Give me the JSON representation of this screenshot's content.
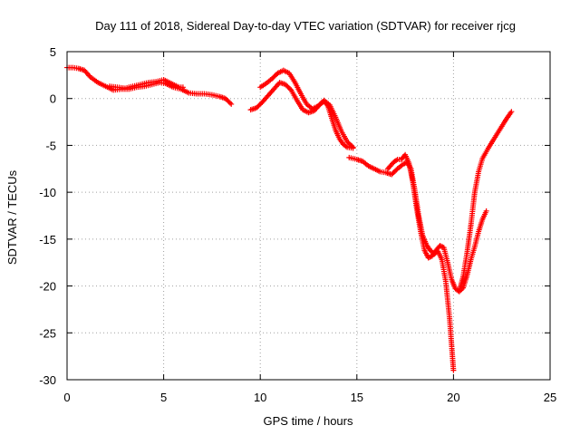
{
  "chart_data": {
    "type": "scatter",
    "title": "Day 111 of 2018, Sidereal Day-to-day VTEC variation (SDTVAR) for receiver rjcg",
    "xlabel": "GPS time / hours",
    "ylabel": "SDTVAR / TECUs",
    "xlim": [
      0,
      25
    ],
    "ylim": [
      -30,
      5
    ],
    "xticks": [
      0,
      5,
      10,
      15,
      20,
      25
    ],
    "yticks": [
      5,
      0,
      -5,
      -10,
      -15,
      -20,
      -25,
      -30
    ],
    "grid": true,
    "marker": "+",
    "color": "#ff0000",
    "series": [
      {
        "name": "seg1",
        "points": [
          [
            0.0,
            3.3
          ],
          [
            0.3,
            3.3
          ],
          [
            0.6,
            3.2
          ],
          [
            0.9,
            3.0
          ],
          [
            1.2,
            2.3
          ],
          [
            1.6,
            1.7
          ],
          [
            2.0,
            1.3
          ],
          [
            2.4,
            0.9
          ],
          [
            2.8,
            1.0
          ],
          [
            3.2,
            1.0
          ],
          [
            3.6,
            1.2
          ],
          [
            4.0,
            1.3
          ],
          [
            4.4,
            1.5
          ],
          [
            4.8,
            1.7
          ],
          [
            5.1,
            1.6
          ],
          [
            5.5,
            1.2
          ],
          [
            5.9,
            1.0
          ],
          [
            6.3,
            0.6
          ],
          [
            6.7,
            0.5
          ],
          [
            7.1,
            0.5
          ],
          [
            7.5,
            0.4
          ],
          [
            7.9,
            0.2
          ],
          [
            8.2,
            0.0
          ],
          [
            8.5,
            -0.6
          ]
        ]
      },
      {
        "name": "seg2",
        "points": [
          [
            2.2,
            1.3
          ],
          [
            2.6,
            1.2
          ],
          [
            3.0,
            1.1
          ],
          [
            3.4,
            1.3
          ],
          [
            3.8,
            1.5
          ],
          [
            4.2,
            1.7
          ],
          [
            4.6,
            1.8
          ],
          [
            5.0,
            2.0
          ],
          [
            5.4,
            1.6
          ],
          [
            5.8,
            1.2
          ],
          [
            6.0,
            1.2
          ]
        ]
      },
      {
        "name": "seg3",
        "points": [
          [
            9.5,
            -1.2
          ],
          [
            9.8,
            -1.0
          ],
          [
            10.1,
            -0.4
          ],
          [
            10.4,
            0.3
          ],
          [
            10.7,
            1.0
          ],
          [
            11.0,
            1.7
          ],
          [
            11.3,
            1.5
          ],
          [
            11.6,
            0.9
          ],
          [
            11.9,
            -0.2
          ],
          [
            12.2,
            -1.2
          ],
          [
            12.5,
            -1.5
          ],
          [
            12.8,
            -1.3
          ],
          [
            13.1,
            -0.6
          ],
          [
            13.3,
            -0.3
          ],
          [
            13.5,
            -0.8
          ],
          [
            13.7,
            -2.1
          ],
          [
            13.9,
            -3.4
          ],
          [
            14.1,
            -4.3
          ],
          [
            14.3,
            -4.9
          ],
          [
            14.5,
            -5.2
          ],
          [
            14.8,
            -5.3
          ]
        ]
      },
      {
        "name": "seg4",
        "points": [
          [
            10.0,
            1.2
          ],
          [
            10.3,
            1.6
          ],
          [
            10.6,
            2.1
          ],
          [
            10.9,
            2.7
          ],
          [
            11.2,
            3.0
          ],
          [
            11.5,
            2.7
          ],
          [
            11.8,
            1.7
          ],
          [
            12.1,
            0.5
          ],
          [
            12.4,
            -0.6
          ],
          [
            12.7,
            -1.1
          ],
          [
            13.0,
            -0.8
          ],
          [
            13.3,
            -0.2
          ],
          [
            13.6,
            -0.7
          ],
          [
            13.9,
            -2.0
          ],
          [
            14.2,
            -3.5
          ],
          [
            14.5,
            -4.6
          ],
          [
            14.8,
            -5.2
          ]
        ]
      },
      {
        "name": "seg5",
        "points": [
          [
            14.6,
            -6.3
          ],
          [
            15.0,
            -6.5
          ],
          [
            15.3,
            -6.7
          ],
          [
            15.6,
            -7.2
          ],
          [
            15.9,
            -7.5
          ],
          [
            16.2,
            -7.8
          ],
          [
            16.5,
            -7.9
          ],
          [
            16.8,
            -8.1
          ],
          [
            17.1,
            -7.5
          ],
          [
            17.4,
            -7.0
          ],
          [
            17.6,
            -6.8
          ],
          [
            17.8,
            -7.5
          ],
          [
            18.0,
            -9.8
          ],
          [
            18.2,
            -12.5
          ],
          [
            18.4,
            -14.6
          ],
          [
            18.6,
            -15.6
          ],
          [
            18.8,
            -16.2
          ],
          [
            19.0,
            -16.6
          ],
          [
            19.2,
            -16.3
          ],
          [
            19.4,
            -17.2
          ],
          [
            19.6,
            -19.5
          ],
          [
            19.8,
            -23.5
          ],
          [
            20.0,
            -29.0
          ]
        ]
      },
      {
        "name": "seg6",
        "points": [
          [
            16.6,
            -7.5
          ],
          [
            16.9,
            -6.8
          ],
          [
            17.1,
            -6.5
          ],
          [
            17.3,
            -6.5
          ],
          [
            17.5,
            -6.0
          ],
          [
            17.7,
            -6.9
          ],
          [
            17.9,
            -9.0
          ],
          [
            18.1,
            -11.8
          ],
          [
            18.3,
            -14.2
          ],
          [
            18.5,
            -16.2
          ],
          [
            18.7,
            -17.0
          ],
          [
            18.9,
            -16.8
          ],
          [
            19.1,
            -16.2
          ],
          [
            19.3,
            -15.7
          ],
          [
            19.5,
            -15.9
          ],
          [
            19.7,
            -17.5
          ],
          [
            19.9,
            -19.3
          ],
          [
            20.1,
            -20.3
          ],
          [
            20.3,
            -20.6
          ],
          [
            20.5,
            -20.2
          ],
          [
            20.7,
            -18.9
          ],
          [
            20.9,
            -17.2
          ],
          [
            21.1,
            -15.8
          ],
          [
            21.3,
            -14.2
          ],
          [
            21.5,
            -12.9
          ],
          [
            21.7,
            -12.0
          ]
        ]
      },
      {
        "name": "seg7",
        "points": [
          [
            20.3,
            -20.5
          ],
          [
            20.5,
            -19.0
          ],
          [
            20.7,
            -16.5
          ],
          [
            20.9,
            -13.5
          ],
          [
            21.1,
            -10.0
          ],
          [
            21.3,
            -7.8
          ],
          [
            21.5,
            -6.4
          ],
          [
            21.8,
            -5.3
          ],
          [
            22.1,
            -4.3
          ],
          [
            22.4,
            -3.3
          ],
          [
            22.7,
            -2.3
          ],
          [
            23.0,
            -1.4
          ]
        ]
      }
    ]
  }
}
